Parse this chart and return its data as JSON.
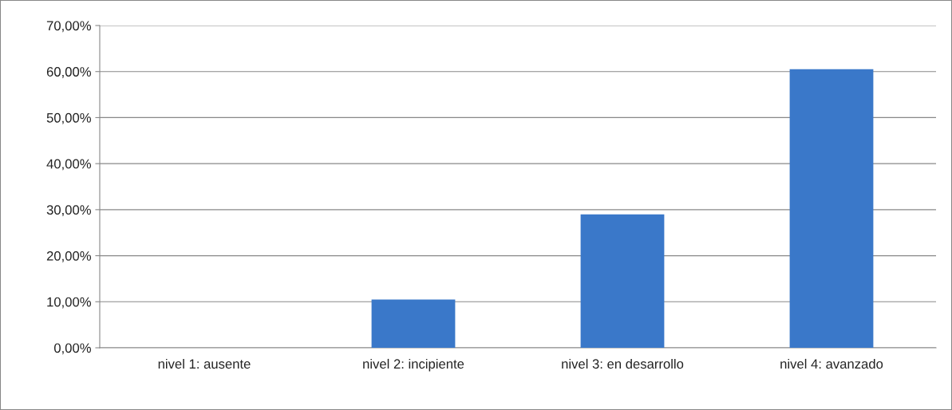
{
  "chart_data": {
    "type": "bar",
    "categories": [
      "nivel 1: ausente",
      "nivel 2: incipiente",
      "nivel 3: en desarrollo",
      "nivel 4: avanzado"
    ],
    "values": [
      0,
      10.5,
      29,
      60.5
    ],
    "color": "#3a78c9",
    "ylim": [
      0,
      70
    ],
    "yticks": [
      {
        "value": 0,
        "label": "0,00%"
      },
      {
        "value": 10,
        "label": "10,00%"
      },
      {
        "value": 20,
        "label": "20,00%"
      },
      {
        "value": 30,
        "label": "30,00%"
      },
      {
        "value": 40,
        "label": "40,00%"
      },
      {
        "value": 50,
        "label": "50,00%"
      },
      {
        "value": 60,
        "label": "60,00%"
      },
      {
        "value": 70,
        "label": "70,00%"
      }
    ],
    "grid": "y",
    "legend": false
  }
}
